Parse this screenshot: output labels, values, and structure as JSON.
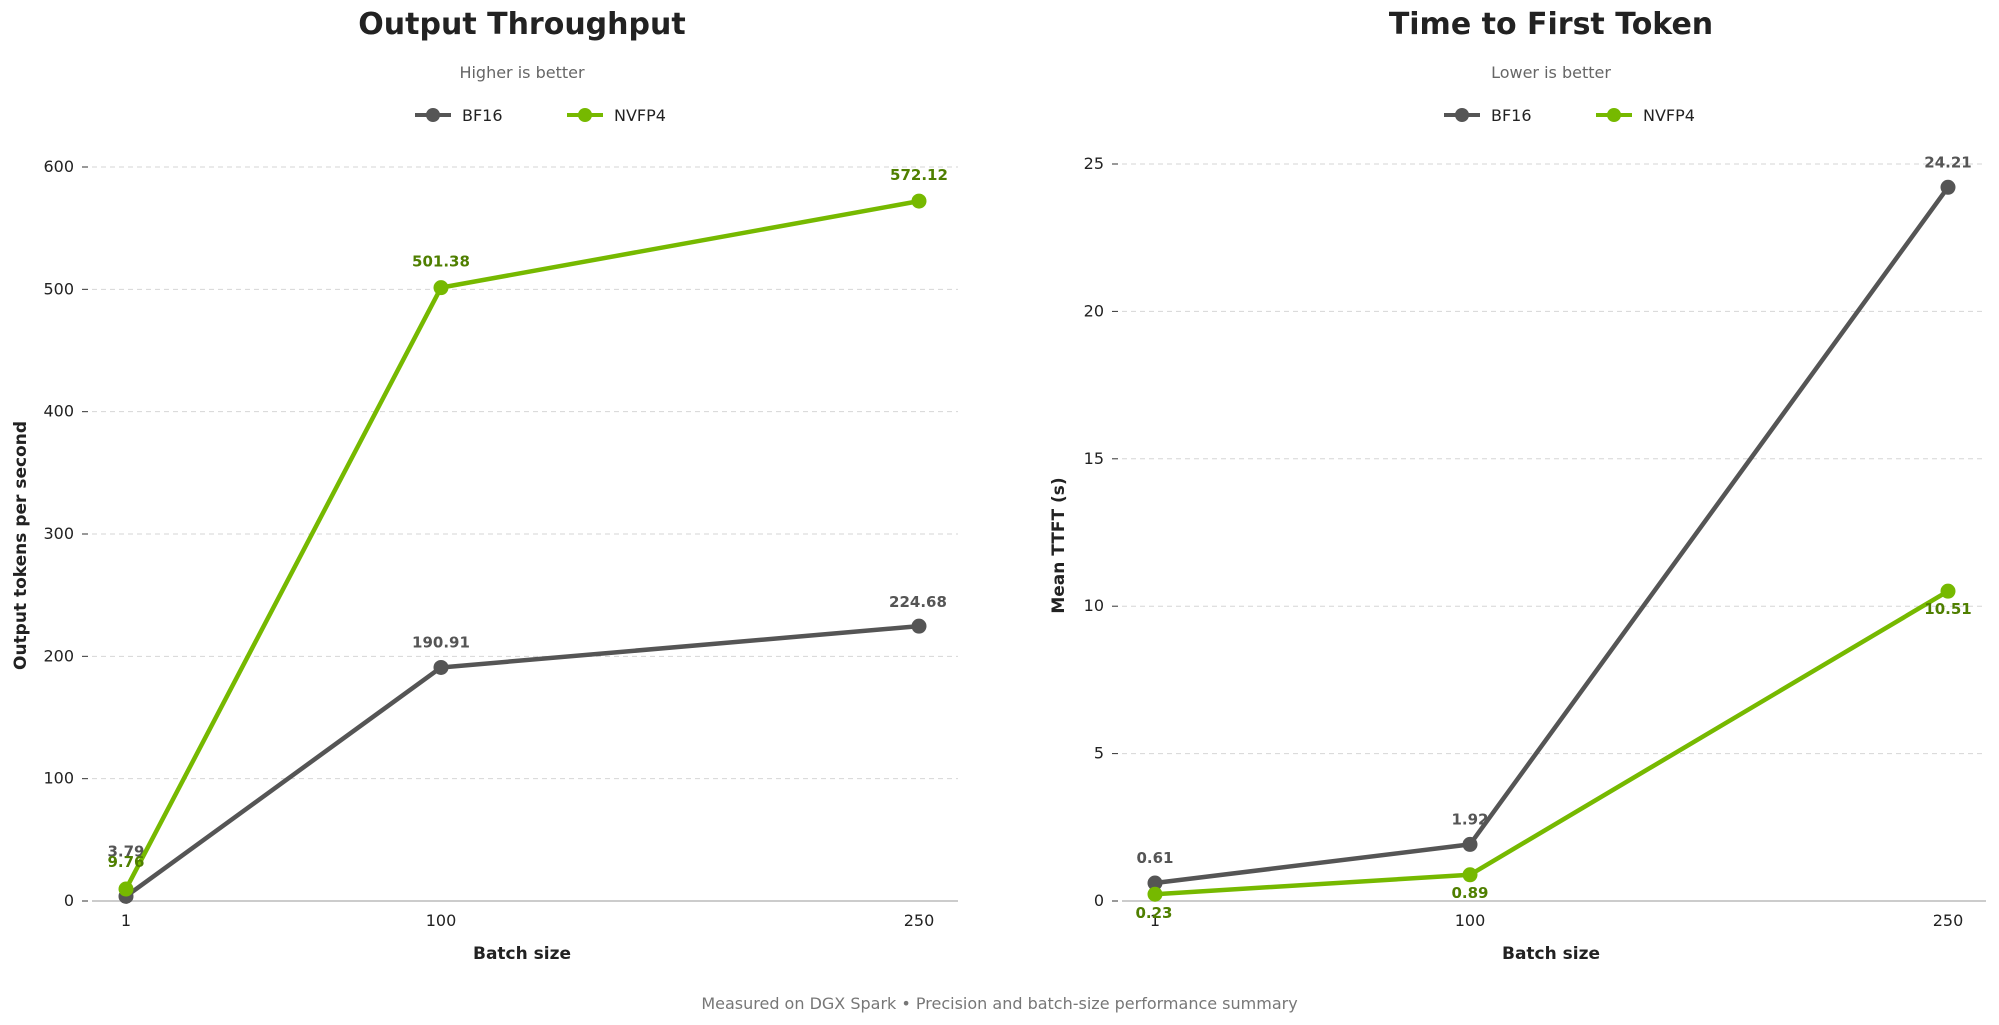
{
  "footer": "Measured on DGX Spark  •  Precision and batch-size performance summary",
  "colors": {
    "bf16": "#555555",
    "nvfp4": "#76b900",
    "nvfp4_label": "#4f7f00",
    "grid": "#d6d6d6",
    "axis": "#bbbbbb",
    "text": "#222222",
    "subtitle": "#666666"
  },
  "chart_data": [
    {
      "type": "line",
      "title": "Output Throughput",
      "subtitle": "Higher is better",
      "xlabel": "Batch size",
      "ylabel": "Output tokens per second",
      "x": [
        "1",
        "100",
        "250"
      ],
      "xlim": [
        1,
        250
      ],
      "ylim": [
        0,
        600
      ],
      "yticks": [
        0,
        100,
        200,
        300,
        400,
        500,
        600
      ],
      "ytick_labels": [
        "0",
        "100",
        "200",
        "300",
        "400",
        "500",
        "600"
      ],
      "xtick_labels": [
        "1",
        "100",
        "250"
      ],
      "grid": "y-dashed",
      "legend": "top-center",
      "series": [
        {
          "name": "BF16",
          "values": [
            3.79,
            190.91,
            224.68
          ],
          "labels": [
            "3.79",
            "190.91",
            "224.68"
          ]
        },
        {
          "name": "NVFP4",
          "values": [
            9.76,
            501.38,
            572.12
          ],
          "labels": [
            "9.76",
            "501.38",
            "572.12"
          ]
        }
      ]
    },
    {
      "type": "line",
      "title": "Time to First Token",
      "subtitle": "Lower is better",
      "xlabel": "Batch size",
      "ylabel": "Mean TTFT (s)",
      "x": [
        "1",
        "100",
        "250"
      ],
      "xlim": [
        1,
        250
      ],
      "ylim": [
        0,
        26
      ],
      "yticks": [
        0,
        5,
        10,
        15,
        20,
        25
      ],
      "ytick_labels": [
        "0",
        "5",
        "10",
        "15",
        "20",
        "25"
      ],
      "xtick_labels": [
        "1",
        "100",
        "250"
      ],
      "grid": "y-dashed",
      "legend": "top-center",
      "series": [
        {
          "name": "BF16",
          "values": [
            0.61,
            1.92,
            24.21
          ],
          "labels": [
            "0.61",
            "1.92",
            "24.21"
          ]
        },
        {
          "name": "NVFP4",
          "values": [
            0.23,
            0.89,
            10.51
          ],
          "labels": [
            "0.23",
            "0.89",
            "10.51"
          ]
        }
      ]
    }
  ]
}
